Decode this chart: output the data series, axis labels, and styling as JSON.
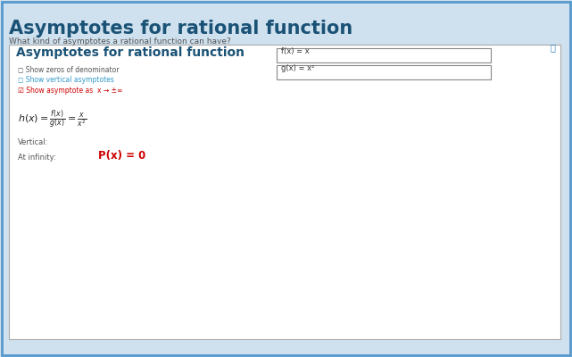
{
  "title": "Asymptotes for rational function",
  "subtitle": "What kind of asymptotes a rational function can have?",
  "panel_title": "Asymptotes for rational function",
  "checkbox1": "Show zeros of denominator",
  "checkbox2": "Show vertical asymptotes",
  "checkbox3": "Show asymptote as  x → ±∞",
  "fx_label": "f(x) = x",
  "gx_label": "g(x) = x²",
  "vertical_label": "Vertical:",
  "at_infinity_label": "At infinity:",
  "px_label": "P(x) = 0",
  "outer_bg": "#cfe0ee",
  "inner_bg": "#ffffff",
  "title_color": "#1a5276",
  "subtitle_color": "#555555",
  "panel_title_color": "#1a5276",
  "checkbox_color": "#555555",
  "checkbox2_color": "#3399cc",
  "checkbox3_color": "#cc0000",
  "px_color": "#cc0000",
  "plot_bg": "#ffffff",
  "axis_color": "#222222",
  "curve_color": "#222222",
  "asymptote_color": "#cc0000",
  "border_color": "#5599cc",
  "x_min": -36,
  "x_max": 36,
  "y_min": -140,
  "y_max": 140,
  "x_tick_step": 2,
  "y_tick_step": 20
}
